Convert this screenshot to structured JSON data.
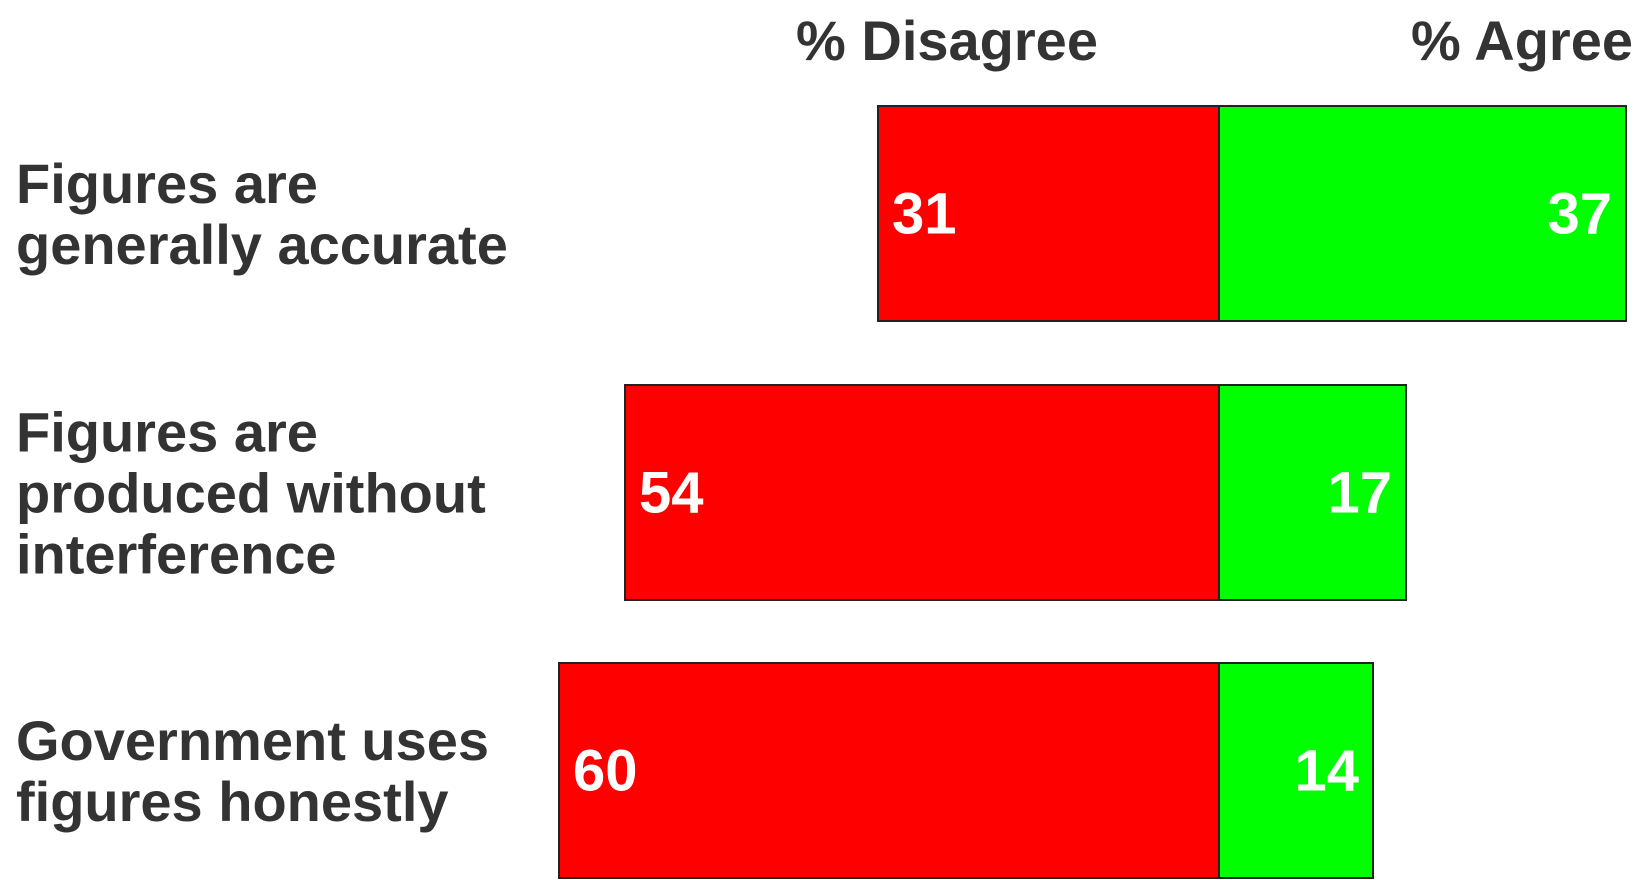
{
  "chart_data": {
    "type": "bar",
    "orientation": "horizontal-diverging",
    "headers": {
      "left": "% Disagree",
      "right": "% Agree"
    },
    "categories": [
      [
        "Figures are",
        "generally accurate"
      ],
      [
        "Figures are",
        "produced without",
        "interference"
      ],
      [
        "Government uses",
        "figures honestly"
      ]
    ],
    "series": [
      {
        "name": "% Disagree",
        "values": [
          31,
          54,
          60
        ],
        "color": "#ff0000"
      },
      {
        "name": "% Agree",
        "values": [
          37,
          17,
          14
        ],
        "color": "#00ff00"
      }
    ],
    "grid": false,
    "legend": "top"
  }
}
